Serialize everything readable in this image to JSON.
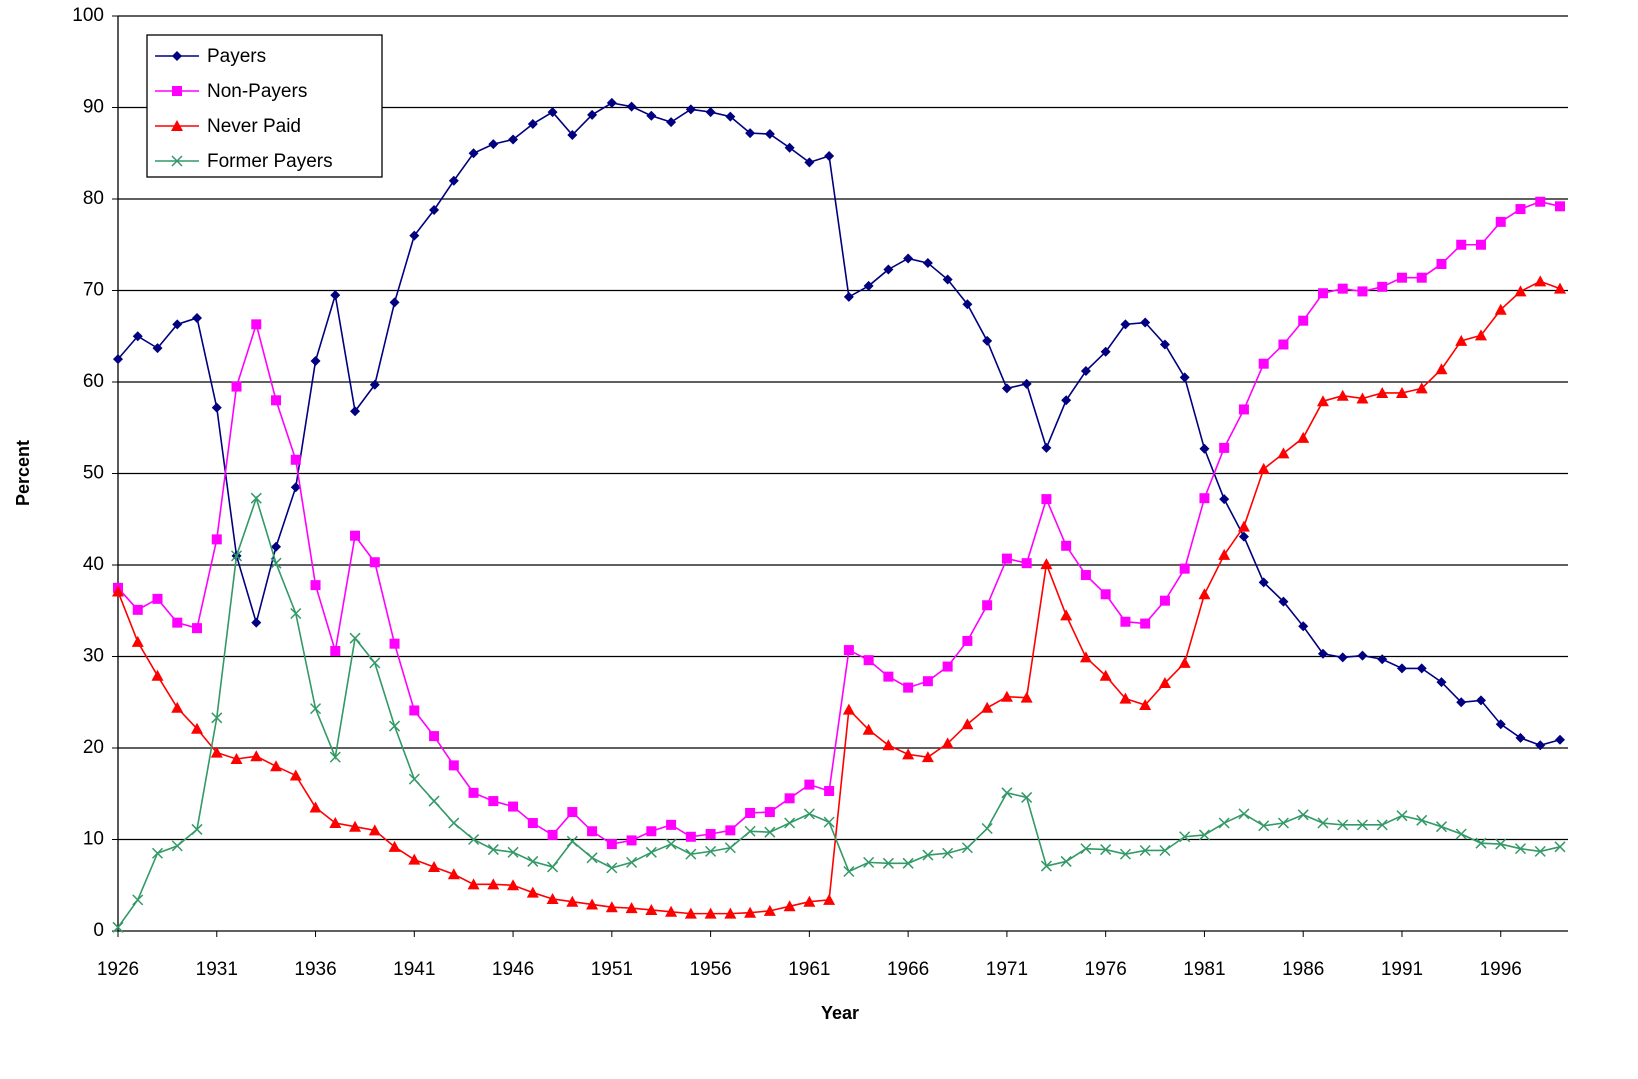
{
  "chart_data": {
    "type": "line",
    "x_label": "Year",
    "y_label": "Percent",
    "x": [
      1926,
      1927,
      1928,
      1929,
      1930,
      1931,
      1932,
      1933,
      1934,
      1935,
      1936,
      1937,
      1938,
      1939,
      1940,
      1941,
      1942,
      1943,
      1944,
      1945,
      1946,
      1947,
      1948,
      1949,
      1950,
      1951,
      1952,
      1953,
      1954,
      1955,
      1956,
      1957,
      1958,
      1959,
      1960,
      1961,
      1962,
      1963,
      1964,
      1965,
      1966,
      1967,
      1968,
      1969,
      1970,
      1971,
      1972,
      1973,
      1974,
      1975,
      1976,
      1977,
      1978,
      1979,
      1980,
      1981,
      1982,
      1983,
      1984,
      1985,
      1986,
      1987,
      1988,
      1989,
      1990,
      1991,
      1992,
      1993,
      1994,
      1995,
      1996,
      1997,
      1998,
      1999
    ],
    "xlim": [
      1926,
      1999
    ],
    "xticks": [
      1926,
      1931,
      1936,
      1941,
      1946,
      1951,
      1956,
      1961,
      1966,
      1971,
      1976,
      1981,
      1986,
      1991,
      1996
    ],
    "ylim": [
      0,
      100
    ],
    "yticks": [
      0,
      10,
      20,
      30,
      40,
      50,
      60,
      70,
      80,
      90,
      100
    ],
    "grid": true,
    "legend": "top-left",
    "series": [
      {
        "name": "Payers",
        "color": "#000080",
        "marker": "diamond",
        "values": [
          62.5,
          65,
          63.7,
          66.3,
          67,
          57.2,
          41,
          33.7,
          42,
          48.5,
          62.3,
          69.5,
          56.8,
          59.7,
          68.7,
          76,
          78.8,
          82,
          85,
          86,
          86.5,
          88.2,
          89.5,
          87,
          89.2,
          90.5,
          90.1,
          89.1,
          88.4,
          89.8,
          89.5,
          89,
          87.2,
          87.1,
          85.6,
          84,
          84.7,
          69.3,
          70.5,
          72.3,
          73.5,
          73,
          71.2,
          68.5,
          64.5,
          59.3,
          59.8,
          52.8,
          58,
          61.2,
          63.3,
          66.3,
          66.5,
          64.1,
          60.5,
          52.7,
          47.2,
          43.1,
          38.1,
          36,
          33.3,
          30.3,
          29.9,
          30.1,
          29.7,
          28.7,
          28.7,
          27.2,
          25,
          25.2,
          22.6,
          21.1,
          20.3,
          20.9
        ]
      },
      {
        "name": "Non-Payers",
        "color": "#ff00ff",
        "marker": "square",
        "values": [
          37.5,
          35.1,
          36.3,
          33.7,
          33.1,
          42.8,
          59.5,
          66.3,
          58,
          51.5,
          37.8,
          30.6,
          43.2,
          40.3,
          31.4,
          24.1,
          21.3,
          18.1,
          15.1,
          14.2,
          13.6,
          11.8,
          10.5,
          13,
          10.9,
          9.5,
          9.9,
          10.9,
          11.6,
          10.3,
          10.6,
          11,
          12.9,
          13,
          14.5,
          16,
          15.3,
          30.7,
          29.6,
          27.8,
          26.6,
          27.3,
          28.9,
          31.7,
          35.6,
          40.7,
          40.2,
          47.2,
          42.1,
          38.9,
          36.8,
          33.8,
          33.6,
          36.1,
          39.6,
          47.3,
          52.8,
          57,
          62,
          64.1,
          66.7,
          69.7,
          70.2,
          69.9,
          70.4,
          71.4,
          71.4,
          72.9,
          75,
          75,
          77.5,
          78.9,
          79.7,
          79.2
        ]
      },
      {
        "name": "Never Paid",
        "color": "#ff0000",
        "marker": "triangle",
        "values": [
          37.1,
          31.6,
          27.9,
          24.4,
          22.1,
          19.5,
          18.8,
          19.1,
          18,
          17,
          13.5,
          11.8,
          11.4,
          11,
          9.2,
          7.8,
          7,
          6.2,
          5.1,
          5.1,
          5,
          4.2,
          3.5,
          3.2,
          2.9,
          2.6,
          2.5,
          2.3,
          2.1,
          1.9,
          1.9,
          1.9,
          2,
          2.2,
          2.7,
          3.2,
          3.4,
          24.2,
          22,
          20.3,
          19.3,
          19,
          20.5,
          22.6,
          24.4,
          25.6,
          25.5,
          40.1,
          34.5,
          29.9,
          27.9,
          25.4,
          24.7,
          27.1,
          29.3,
          36.8,
          41.1,
          44.2,
          50.5,
          52.2,
          53.9,
          57.9,
          58.5,
          58.2,
          58.8,
          58.8,
          59.3,
          61.4,
          64.5,
          65.1,
          67.9,
          69.9,
          71,
          70.2
        ]
      },
      {
        "name": "Former Payers",
        "color": "#339966",
        "marker": "x",
        "values": [
          0.4,
          3.4,
          8.5,
          9.3,
          11.1,
          23.3,
          41,
          47.3,
          40.2,
          34.7,
          24.3,
          19,
          32,
          29.3,
          22.4,
          16.6,
          14.2,
          11.8,
          10,
          8.9,
          8.6,
          7.6,
          7,
          9.8,
          8,
          6.9,
          7.5,
          8.6,
          9.5,
          8.4,
          8.7,
          9.1,
          10.9,
          10.8,
          11.8,
          12.8,
          11.9,
          6.5,
          7.5,
          7.4,
          7.4,
          8.3,
          8.5,
          9.1,
          11.2,
          15.1,
          14.6,
          7.1,
          7.6,
          9,
          8.9,
          8.4,
          8.8,
          8.8,
          10.3,
          10.5,
          11.8,
          12.8,
          11.5,
          11.8,
          12.7,
          11.8,
          11.6,
          11.6,
          11.6,
          12.6,
          12.1,
          11.4,
          10.6,
          9.6,
          9.5,
          9,
          8.7,
          9.2
        ]
      }
    ]
  }
}
